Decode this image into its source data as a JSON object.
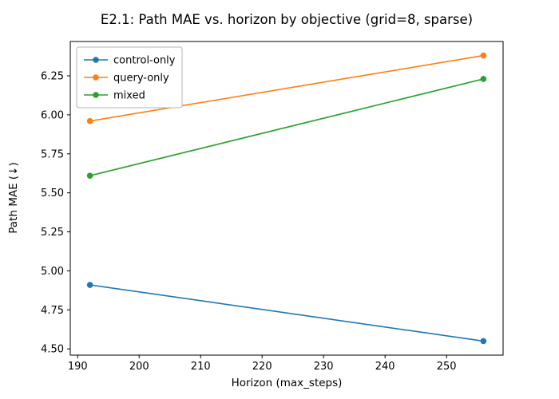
{
  "chart_data": {
    "type": "line",
    "title": "E2.1: Path MAE vs. horizon by objective (grid=8, sparse)",
    "xlabel": "Horizon (max_steps)",
    "ylabel": "Path MAE (↓)",
    "x": [
      192,
      256
    ],
    "series": [
      {
        "name": "control-only",
        "color": "#1f77b4",
        "values": [
          4.91,
          4.55
        ]
      },
      {
        "name": "query-only",
        "color": "#ff7f0e",
        "values": [
          5.96,
          6.38
        ]
      },
      {
        "name": "mixed",
        "color": "#2ca02c",
        "values": [
          5.61,
          6.23
        ]
      }
    ],
    "xlim": [
      188.8,
      259.2
    ],
    "ylim": [
      4.46,
      6.47
    ],
    "xticks": [
      190,
      200,
      210,
      220,
      230,
      240,
      250
    ],
    "yticks": [
      4.5,
      4.75,
      5.0,
      5.25,
      5.5,
      5.75,
      6.0,
      6.25
    ],
    "legend": {
      "position": "upper left",
      "border_color": "#b4b4b4"
    },
    "grid": false,
    "marker": "o",
    "background": "#ffffff",
    "spine_color": "#000000"
  }
}
